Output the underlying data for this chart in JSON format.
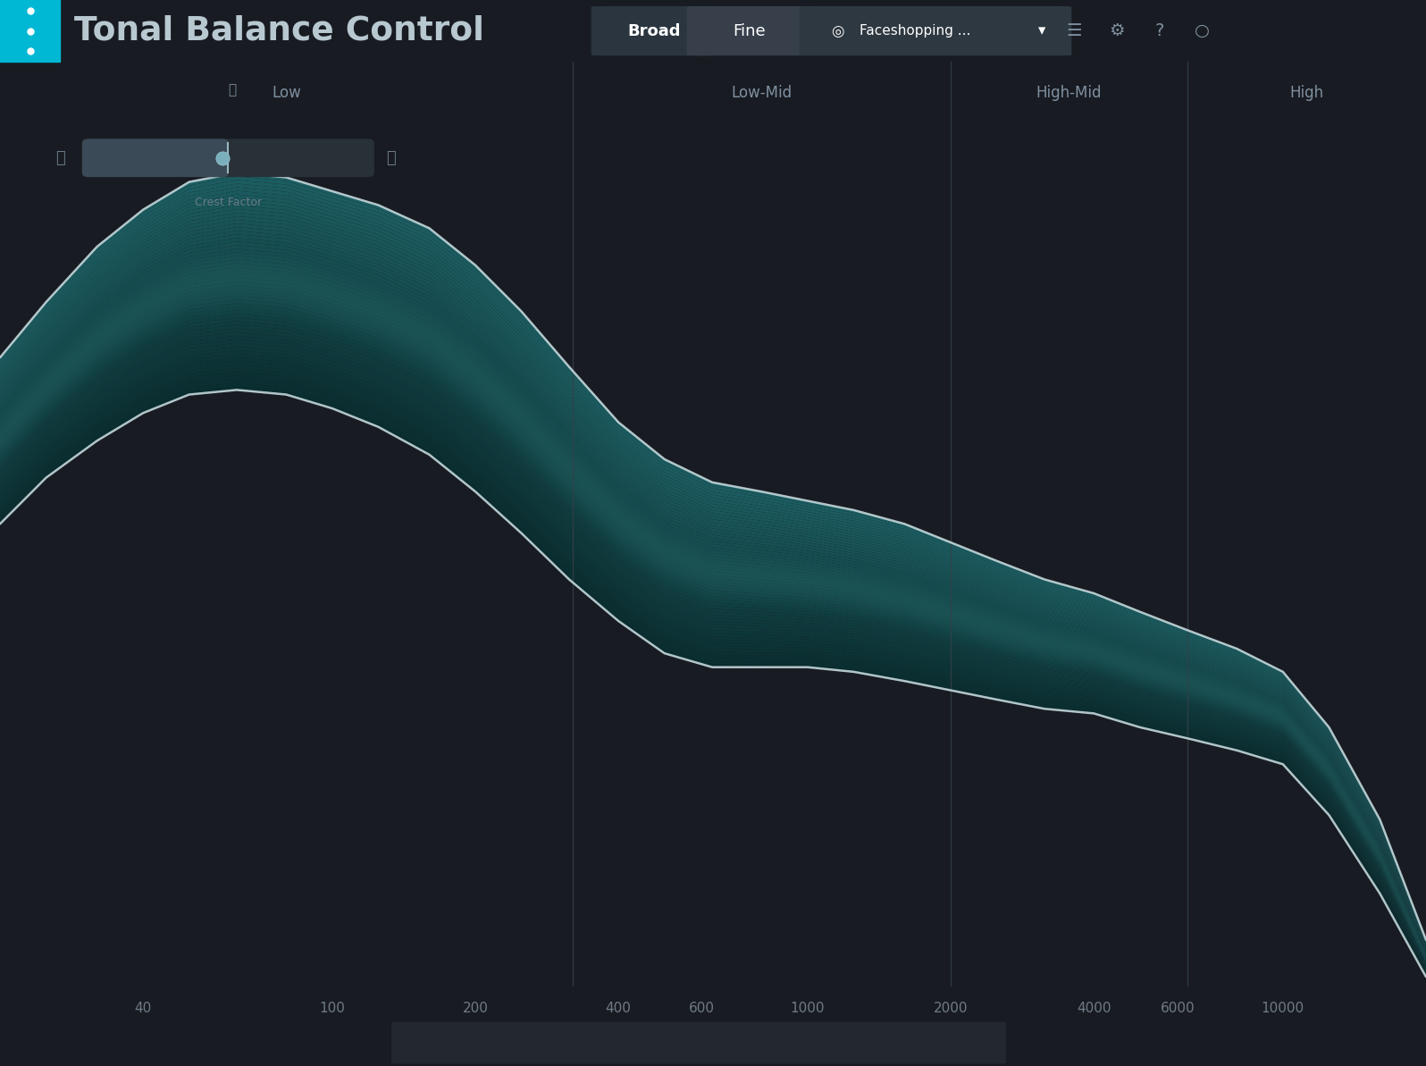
{
  "title": "Tonal Balance Control",
  "preset_name": "Faceshopping ...",
  "bg_color": "#181c22",
  "header_bg": "#252b33",
  "header_text_color": "#b8c8d0",
  "cyan_bar_color": "#00b8d4",
  "section_labels": [
    "Low",
    "Low-Mid",
    "High-Mid",
    "High"
  ],
  "divider_freqs": [
    320,
    2000,
    6300
  ],
  "freq_ticks": [
    40,
    100,
    200,
    400,
    600,
    1000,
    2000,
    4000,
    6000,
    10000
  ],
  "freq_tick_labels": [
    "40",
    "100",
    "200",
    "400",
    "600",
    "1000",
    "2000",
    "4000",
    "6000",
    "10000"
  ],
  "freq_min": 20,
  "freq_max": 20000,
  "upper_curve_x": [
    20,
    25,
    32,
    40,
    50,
    63,
    80,
    100,
    125,
    160,
    200,
    250,
    315,
    400,
    500,
    630,
    800,
    1000,
    1250,
    1600,
    2000,
    2500,
    3150,
    4000,
    5000,
    6300,
    8000,
    10000,
    12500,
    16000,
    20000
  ],
  "upper_curve_y": [
    0.68,
    0.74,
    0.8,
    0.84,
    0.87,
    0.88,
    0.875,
    0.86,
    0.845,
    0.82,
    0.78,
    0.73,
    0.67,
    0.61,
    0.57,
    0.545,
    0.535,
    0.525,
    0.515,
    0.5,
    0.48,
    0.46,
    0.44,
    0.425,
    0.405,
    0.385,
    0.365,
    0.34,
    0.28,
    0.18,
    0.05
  ],
  "lower_curve_x": [
    20,
    25,
    32,
    40,
    50,
    63,
    80,
    100,
    125,
    160,
    200,
    250,
    315,
    400,
    500,
    630,
    800,
    1000,
    1250,
    1600,
    2000,
    2500,
    3150,
    4000,
    5000,
    6300,
    8000,
    10000,
    12500,
    16000,
    20000
  ],
  "lower_curve_y": [
    0.5,
    0.55,
    0.59,
    0.62,
    0.64,
    0.645,
    0.64,
    0.625,
    0.605,
    0.575,
    0.535,
    0.49,
    0.44,
    0.395,
    0.36,
    0.345,
    0.345,
    0.345,
    0.34,
    0.33,
    0.32,
    0.31,
    0.3,
    0.295,
    0.28,
    0.268,
    0.255,
    0.24,
    0.185,
    0.1,
    0.01
  ],
  "curve_color": "#c0d4d8",
  "curve_lw": 1.8,
  "divider_color": "#35404a",
  "tick_color": "#707a84",
  "section_label_color": "#8090a0",
  "fill_dark": "#0a2e30",
  "fill_bright": "#1a5c60"
}
